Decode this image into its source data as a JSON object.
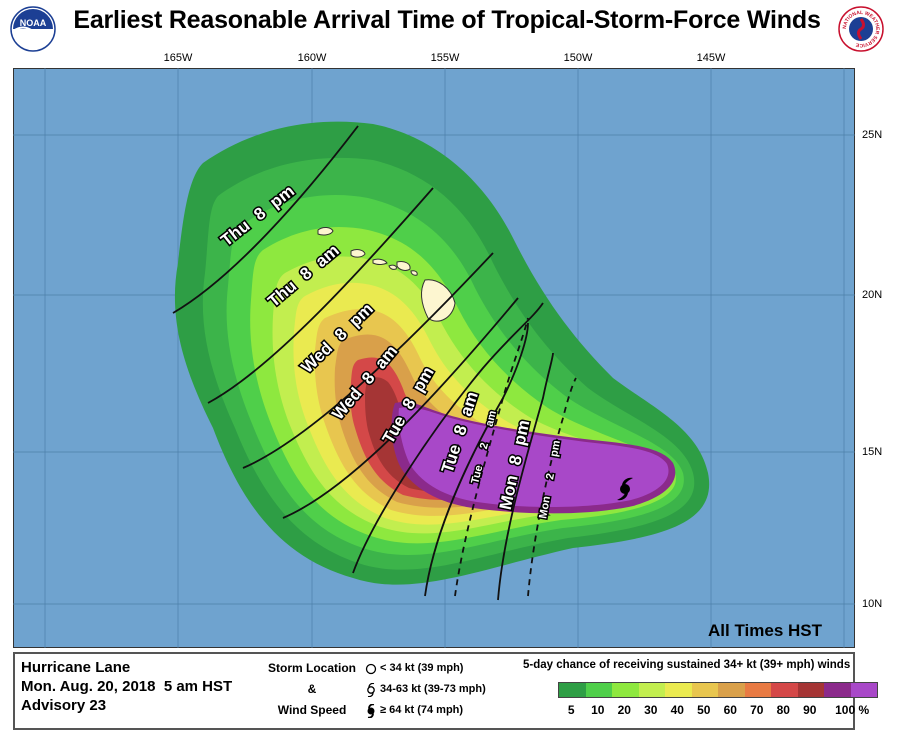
{
  "header": {
    "title": "Earliest Reasonable Arrival Time of Tropical-Storm-Force Winds",
    "left_logo_text": "NOAA",
    "right_logo_text": "NATIONAL WEATHER SERVICE"
  },
  "map": {
    "longitude_labels": [
      "165W",
      "160W",
      "155W",
      "150W",
      "145W"
    ],
    "latitude_labels": [
      "25N",
      "20N",
      "15N",
      "10N"
    ],
    "arrival_time_labels": [
      "Thu 8 pm",
      "Thu 8 am",
      "Wed 8 pm",
      "Wed 8 am",
      "Tue 8 pm",
      "Tue 8 am",
      "Tue 2 am",
      "Mon 8 pm",
      "Mon 2 pm"
    ],
    "ocean_color": "#6fa3cf",
    "land_color": "#fdf6d0",
    "storm_symbol": "hurricane-icon",
    "timezone_note": "All Times HST"
  },
  "legend": {
    "storm_name": "Hurricane Lane",
    "issued": "Mon. Aug. 20, 2018  5 am HST",
    "advisory": "Advisory 23",
    "storm_location_header": [
      "Storm Location",
      "&",
      "Wind Speed"
    ],
    "symbols": [
      {
        "icon": "open-circle-icon",
        "label": "< 34 kt (39 mph)"
      },
      {
        "icon": "tropical-storm-icon",
        "label": "34-63 kt (39-73 mph)"
      },
      {
        "icon": "hurricane-icon",
        "label": "≥ 64 kt (74 mph)"
      }
    ],
    "probability_title": "5-day chance of receiving sustained 34+ kt (39+ mph) winds",
    "scale_colors": [
      "#2e9e45",
      "#4fcf4a",
      "#8ee83f",
      "#c2ee4f",
      "#eaea50",
      "#e8c64f",
      "#d9a04a",
      "#e87a43",
      "#d44848",
      "#a53535",
      "#8b2a8b",
      "#a848c8"
    ],
    "scale_labels": [
      "5",
      "10",
      "20",
      "30",
      "40",
      "50",
      "60",
      "70",
      "80",
      "90",
      "100 %"
    ]
  }
}
